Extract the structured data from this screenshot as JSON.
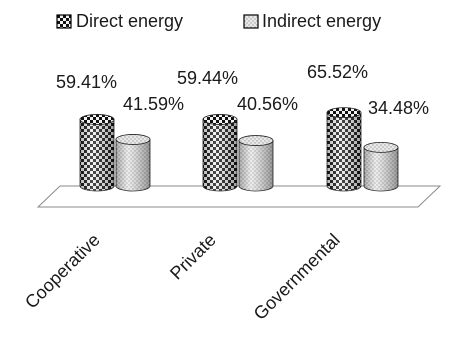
{
  "chart_data": {
    "type": "bar",
    "style": "3d-cylinder",
    "categories": [
      "Cooperative",
      "Private",
      "Governmental"
    ],
    "series": [
      {
        "name": "Direct energy",
        "values": [
          59.41,
          59.44,
          65.52
        ],
        "value_labels": [
          "59.41%",
          "59.44%",
          "65.52%"
        ],
        "pattern": "checkered",
        "color": "#1a1a1a"
      },
      {
        "name": "Indirect energy",
        "values": [
          41.59,
          40.56,
          34.48
        ],
        "value_labels": [
          "41.59%",
          "40.56%",
          "34.48%"
        ],
        "pattern": "dotted",
        "color": "#cfcfcf"
      }
    ],
    "ylim": [
      0,
      100
    ],
    "legend": "top",
    "grid": false,
    "axis_line": false
  }
}
